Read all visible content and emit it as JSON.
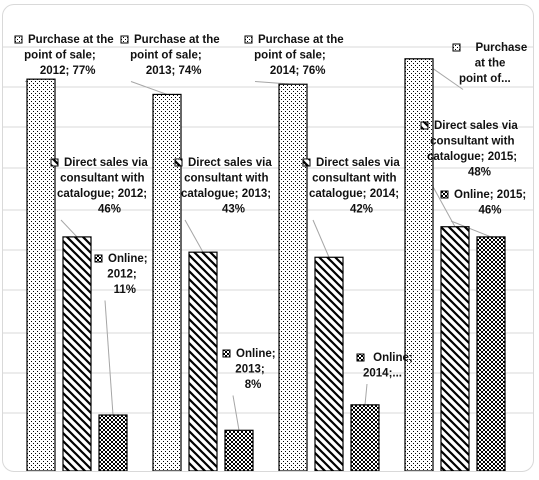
{
  "chart_data": {
    "type": "bar",
    "categories": [
      "2012",
      "2013",
      "2014",
      "2015"
    ],
    "series": [
      {
        "name": "Purchase at the point of sale",
        "values": [
          77,
          74,
          76,
          81
        ],
        "pattern": "dots",
        "labels": [
          [
            "Purchase at the",
            "point of sale;",
            "2012; 77%"
          ],
          [
            "Purchase at the",
            "point of sale;",
            "2013; 74%"
          ],
          [
            "Purchase at the",
            "point of sale;",
            "2014; 76%"
          ],
          [
            "Purchase",
            "at the",
            "point of..."
          ]
        ]
      },
      {
        "name": "Direct sales via consultant with catalogue",
        "values": [
          46,
          43,
          42,
          48
        ],
        "pattern": "diagonal",
        "labels": [
          [
            "Direct sales via",
            "consultant with",
            "catalogue; 2012;",
            "46%"
          ],
          [
            "Direct sales via",
            "consultant with",
            "catalogue; 2013;",
            "43%"
          ],
          [
            "Direct sales via",
            "consultant with",
            "catalogue; 2014;",
            "42%"
          ],
          [
            "Direct sales via",
            "consultant with",
            "catalogue; 2015;",
            "48%"
          ]
        ]
      },
      {
        "name": "Online",
        "values": [
          11,
          8,
          13,
          46
        ],
        "pattern": "checker",
        "labels": [
          [
            "Online;",
            "2012;",
            "11%"
          ],
          [
            "Online;",
            "2013;",
            "8%"
          ],
          [
            "Online;",
            "2014;..."
          ],
          [
            "Online; 2015;",
            "46%"
          ]
        ]
      }
    ],
    "ylim": [
      0,
      90
    ],
    "grid": true,
    "colors": {
      "stroke": "#000000",
      "grid": "#d9d9d9",
      "leader": "#a6a6a6",
      "fill": "#ffffff"
    }
  }
}
